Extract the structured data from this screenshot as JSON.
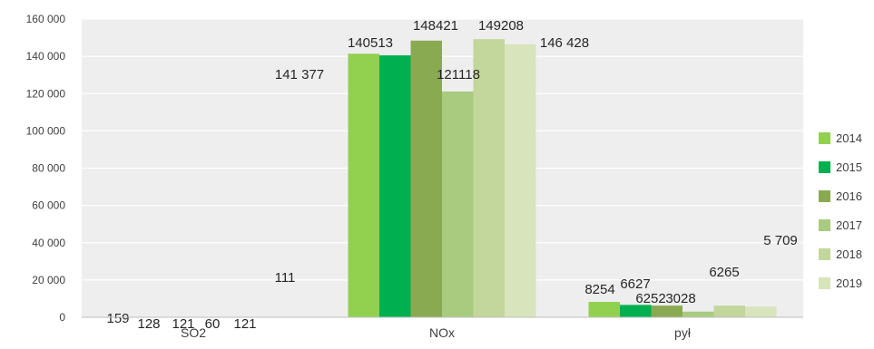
{
  "chart_data": {
    "type": "bar",
    "categories": [
      "SO2",
      "NOx",
      "pył"
    ],
    "series": [
      {
        "name": "2014",
        "color": "#92d050",
        "values": [
          159,
          141377,
          8254
        ],
        "labels": [
          "159",
          "141 377",
          "8254"
        ]
      },
      {
        "name": "2015",
        "color": "#00b050",
        "values": [
          128,
          140513,
          6627
        ],
        "labels": [
          "128",
          "140513",
          "6627"
        ]
      },
      {
        "name": "2016",
        "color": "#8aaa52",
        "values": [
          121,
          148421,
          6252
        ],
        "labels": [
          "121",
          "148421",
          "6252"
        ]
      },
      {
        "name": "2017",
        "color": "#a9cb80",
        "values": [
          60,
          121118,
          3028
        ],
        "labels": [
          "60",
          "121118",
          "3028"
        ]
      },
      {
        "name": "2018",
        "color": "#c3d69b",
        "values": [
          121,
          149208,
          6265
        ],
        "labels": [
          "121",
          "149208",
          "6265"
        ]
      },
      {
        "name": "2019",
        "color": "#d8e4bc",
        "values": [
          111,
          146428,
          5709
        ],
        "labels": [
          "111",
          "146 428",
          "5 709"
        ]
      }
    ],
    "y_ticks": [
      {
        "value": 0,
        "label": "0"
      },
      {
        "value": 20000,
        "label": "20 000"
      },
      {
        "value": 40000,
        "label": "40 000"
      },
      {
        "value": 60000,
        "label": "60 000"
      },
      {
        "value": 80000,
        "label": "80 000"
      },
      {
        "value": 100000,
        "label": "100 000"
      },
      {
        "value": 120000,
        "label": "120 000"
      },
      {
        "value": 140000,
        "label": "140 000"
      },
      {
        "value": 160000,
        "label": "160 000"
      }
    ],
    "ylim": [
      0,
      160000
    ],
    "grid": true,
    "plot_background": "#eeeeee",
    "legend_position": "right",
    "title": "",
    "xlabel": "",
    "ylabel": ""
  }
}
